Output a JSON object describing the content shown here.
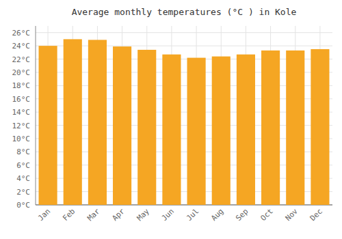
{
  "chart_data": {
    "type": "bar",
    "title": "Average monthly temperatures (°C ) in Kole",
    "categories": [
      "Jan",
      "Feb",
      "Mar",
      "Apr",
      "May",
      "Jun",
      "Jul",
      "Aug",
      "Sep",
      "Oct",
      "Nov",
      "Dec"
    ],
    "values": [
      24.0,
      25.0,
      24.9,
      23.9,
      23.4,
      22.7,
      22.2,
      22.4,
      22.7,
      23.3,
      23.3,
      23.5
    ],
    "color": "#F5A623",
    "ylim": [
      0,
      27
    ],
    "yticks": [
      {
        "value": 0,
        "label": "0°C"
      },
      {
        "value": 2,
        "label": "2°C"
      },
      {
        "value": 4,
        "label": "4°C"
      },
      {
        "value": 6,
        "label": "6°C"
      },
      {
        "value": 8,
        "label": "8°C"
      },
      {
        "value": 10,
        "label": "10°C"
      },
      {
        "value": 12,
        "label": "12°C"
      },
      {
        "value": 14,
        "label": "14°C"
      },
      {
        "value": 16,
        "label": "16°C"
      },
      {
        "value": 18,
        "label": "18°C"
      },
      {
        "value": 20,
        "label": "20°C"
      },
      {
        "value": 22,
        "label": "22°C"
      },
      {
        "value": 24,
        "label": "24°C"
      },
      {
        "value": 26,
        "label": "26°C"
      }
    ],
    "grid": true
  }
}
